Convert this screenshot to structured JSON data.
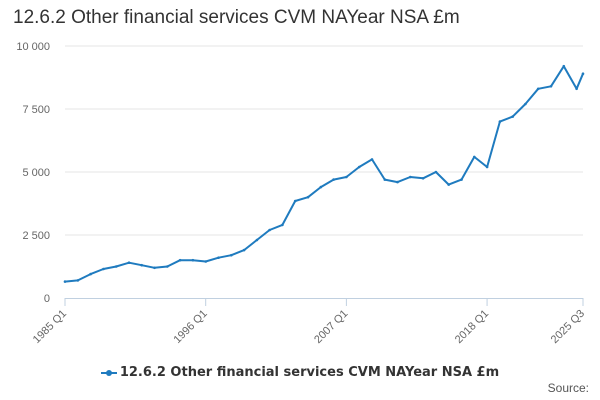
{
  "chart_data": {
    "type": "line",
    "title": "12.6.2 Other financial services CVM NAYear NSA £m",
    "xlabel": "",
    "ylabel": "",
    "ylim": [
      0,
      10000
    ],
    "yticks": [
      0,
      2500,
      5000,
      7500,
      10000
    ],
    "ytick_labels": [
      "0",
      "2 500",
      "5 000",
      "7 500",
      "10 000"
    ],
    "xticks": [
      "1985 Q1",
      "1996 Q1",
      "2007 Q1",
      "2018 Q1",
      "2025 Q3"
    ],
    "grid": true,
    "legend": "bottom",
    "series": [
      {
        "name": "12.6.2 Other financial services CVM NAYear NSA £m",
        "color": "#1f7bbf",
        "x": [
          "1985 Q1",
          "1986 Q1",
          "1987 Q1",
          "1988 Q1",
          "1989 Q1",
          "1990 Q1",
          "1991 Q1",
          "1992 Q1",
          "1993 Q1",
          "1994 Q1",
          "1995 Q1",
          "1996 Q1",
          "1997 Q1",
          "1998 Q1",
          "1999 Q1",
          "2000 Q1",
          "2001 Q1",
          "2002 Q1",
          "2003 Q1",
          "2004 Q1",
          "2005 Q1",
          "2006 Q1",
          "2007 Q1",
          "2008 Q1",
          "2009 Q1",
          "2010 Q1",
          "2011 Q1",
          "2012 Q1",
          "2013 Q1",
          "2014 Q1",
          "2015 Q1",
          "2016 Q1",
          "2017 Q1",
          "2018 Q1",
          "2019 Q1",
          "2020 Q1",
          "2021 Q1",
          "2022 Q1",
          "2023 Q1",
          "2024 Q1",
          "2025 Q1",
          "2025 Q3"
        ],
        "values": [
          650,
          700,
          950,
          1150,
          1250,
          1400,
          1300,
          1200,
          1250,
          1500,
          1500,
          1450,
          1600,
          1700,
          1900,
          2300,
          2700,
          2900,
          3850,
          4000,
          4400,
          4700,
          4800,
          5200,
          5500,
          4700,
          4600,
          4800,
          4750,
          5000,
          4500,
          4700,
          5600,
          5200,
          7000,
          7200,
          7700,
          8300,
          8400,
          9200,
          8300,
          8900
        ]
      }
    ]
  },
  "footer": {
    "source_label": "Source:"
  }
}
